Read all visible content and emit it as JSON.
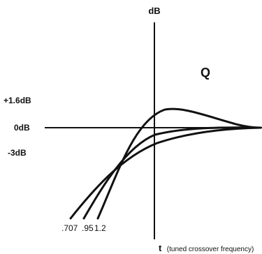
{
  "axes": {
    "y_title": "dB",
    "x_title_bold": "t",
    "x_title_rest": "(tuned crossover frequency)"
  },
  "parameter_label": "Q",
  "level_labels": {
    "plus": "+1.6dB",
    "zero": "0dB",
    "minus": "-3dB"
  },
  "curves": [
    {
      "q": ".707"
    },
    {
      "q": ".95"
    },
    {
      "q": "1.2"
    }
  ],
  "colors": {
    "ink": "#111111",
    "background": "#ffffff"
  }
}
